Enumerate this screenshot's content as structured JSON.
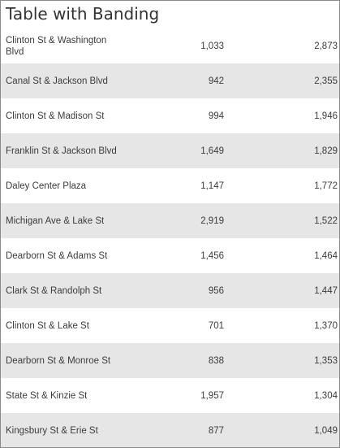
{
  "title": "Table with Banding",
  "rows": [
    {
      "name": "Clinton St & Washington Blvd",
      "a": "1,033",
      "b": "2,873"
    },
    {
      "name": "Canal St & Jackson Blvd",
      "a": "942",
      "b": "2,355"
    },
    {
      "name": "Clinton St & Madison St",
      "a": "994",
      "b": "1,946"
    },
    {
      "name": "Franklin St & Jackson Blvd",
      "a": "1,649",
      "b": "1,829"
    },
    {
      "name": "Daley Center Plaza",
      "a": "1,147",
      "b": "1,772"
    },
    {
      "name": "Michigan Ave & Lake St",
      "a": "2,919",
      "b": "1,522"
    },
    {
      "name": "Dearborn St & Adams St",
      "a": "1,456",
      "b": "1,464"
    },
    {
      "name": "Clark St & Randolph St",
      "a": "956",
      "b": "1,447"
    },
    {
      "name": "Clinton St & Lake St",
      "a": "701",
      "b": "1,370"
    },
    {
      "name": "Dearborn St & Monroe St",
      "a": "838",
      "b": "1,353"
    },
    {
      "name": "State St & Kinzie St",
      "a": "1,957",
      "b": "1,304"
    },
    {
      "name": "Kingsbury St & Erie St",
      "a": "877",
      "b": "1,049"
    }
  ],
  "colors": {
    "band": "#e6e6e6",
    "text": "#3c3c3c",
    "title": "#333333"
  }
}
